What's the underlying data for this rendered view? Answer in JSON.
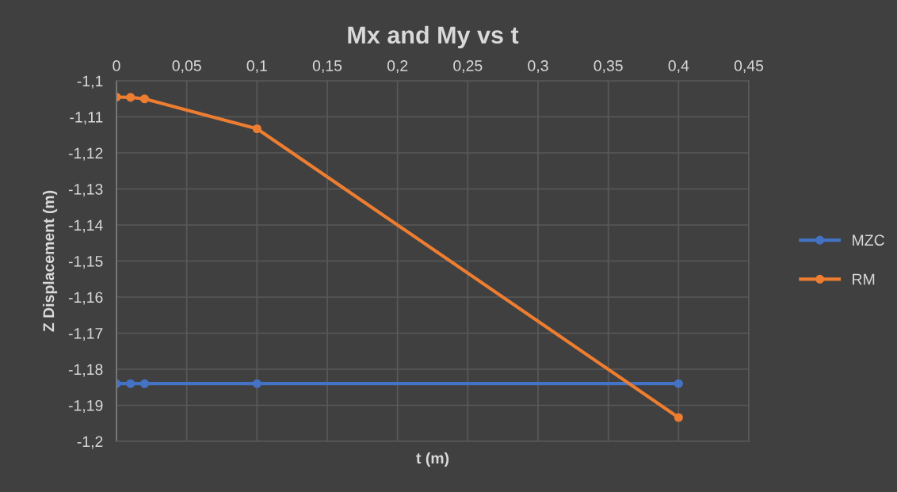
{
  "chart_data": {
    "type": "line",
    "title": "Mx and My vs t",
    "xlabel": "t (m)",
    "ylabel": "Z Displacement (m)",
    "x": [
      0,
      0.01,
      0.02,
      0.1,
      0.4
    ],
    "series": [
      {
        "name": "MZC",
        "color": "#4472c4",
        "values": [
          -1.184,
          -1.184,
          -1.184,
          -1.184,
          -1.184
        ]
      },
      {
        "name": "RM",
        "color": "#ed7d31",
        "values": [
          -1.1045,
          -1.1046,
          -1.105,
          -1.1133,
          -1.1934
        ]
      }
    ],
    "xlim": [
      0,
      0.45
    ],
    "xticks": [
      {
        "value": 0,
        "label": "0"
      },
      {
        "value": 0.05,
        "label": "0,05"
      },
      {
        "value": 0.1,
        "label": "0,1"
      },
      {
        "value": 0.15,
        "label": "0,15"
      },
      {
        "value": 0.2,
        "label": "0,2"
      },
      {
        "value": 0.25,
        "label": "0,25"
      },
      {
        "value": 0.3,
        "label": "0,3"
      },
      {
        "value": 0.35,
        "label": "0,35"
      },
      {
        "value": 0.4,
        "label": "0,4"
      },
      {
        "value": 0.45,
        "label": "0,45"
      }
    ],
    "ylim": [
      -1.2,
      -1.1
    ],
    "yticks": [
      {
        "value": -1.1,
        "label": "-1,1"
      },
      {
        "value": -1.11,
        "label": "-1,11"
      },
      {
        "value": -1.12,
        "label": "-1,12"
      },
      {
        "value": -1.13,
        "label": "-1,13"
      },
      {
        "value": -1.14,
        "label": "-1,14"
      },
      {
        "value": -1.15,
        "label": "-1,15"
      },
      {
        "value": -1.16,
        "label": "-1,16"
      },
      {
        "value": -1.17,
        "label": "-1,17"
      },
      {
        "value": -1.18,
        "label": "-1,18"
      },
      {
        "value": -1.19,
        "label": "-1,19"
      },
      {
        "value": -1.2,
        "label": "-1,2"
      }
    ],
    "grid": true,
    "legend": "right",
    "marker": "circle",
    "line_style": "solid"
  }
}
